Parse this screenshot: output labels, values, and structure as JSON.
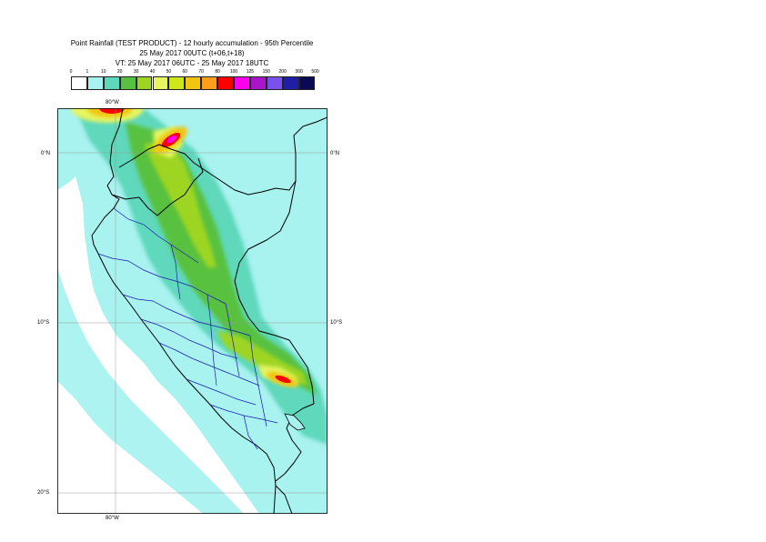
{
  "title": {
    "line1": "Point Rainfall (TEST PRODUCT) - 12 hourly accumulation - 95th Percentile",
    "line2": "25 May 2017 00UTC (t+06,t+18)",
    "line3": "VT: 25 May 2017 06UTC - 25 May 2017 18UTC"
  },
  "legend": {
    "thresholds": [
      "0",
      "1",
      "10",
      "20",
      "30",
      "40",
      "50",
      "60",
      "70",
      "80",
      "100",
      "125",
      "150",
      "200",
      "300",
      "500"
    ],
    "colors": [
      "#ffffff",
      "#a8f2f0",
      "#5ed8bb",
      "#58c13f",
      "#9ed520",
      "#e6f560",
      "#cce619",
      "#f1c40f",
      "#ff9e1a",
      "#ff0000",
      "#ff00ee",
      "#aa15cc",
      "#7b50f0",
      "#1e1ea6",
      "#0a0a52"
    ]
  },
  "map": {
    "labels": {
      "lon_top": "80°W",
      "lon_bottom": "80°W",
      "lat_0_left": "0°N",
      "lat_0_right": "0°N",
      "lat_10_left": "10°S",
      "lat_10_right": "10°S",
      "lat_20_left": "20°S"
    },
    "colors": {
      "background": "#ffffff",
      "light": "#a8f2f0",
      "medium": "#5ed8bb",
      "green": "#58c13f",
      "lime": "#9ed520",
      "yellow": "#e6f560",
      "orange": "#f1c40f",
      "red": "#ff0000",
      "magenta": "#ff00ee",
      "coast": "#000000",
      "border": "#1a1ab0",
      "grid": "#999999"
    }
  }
}
